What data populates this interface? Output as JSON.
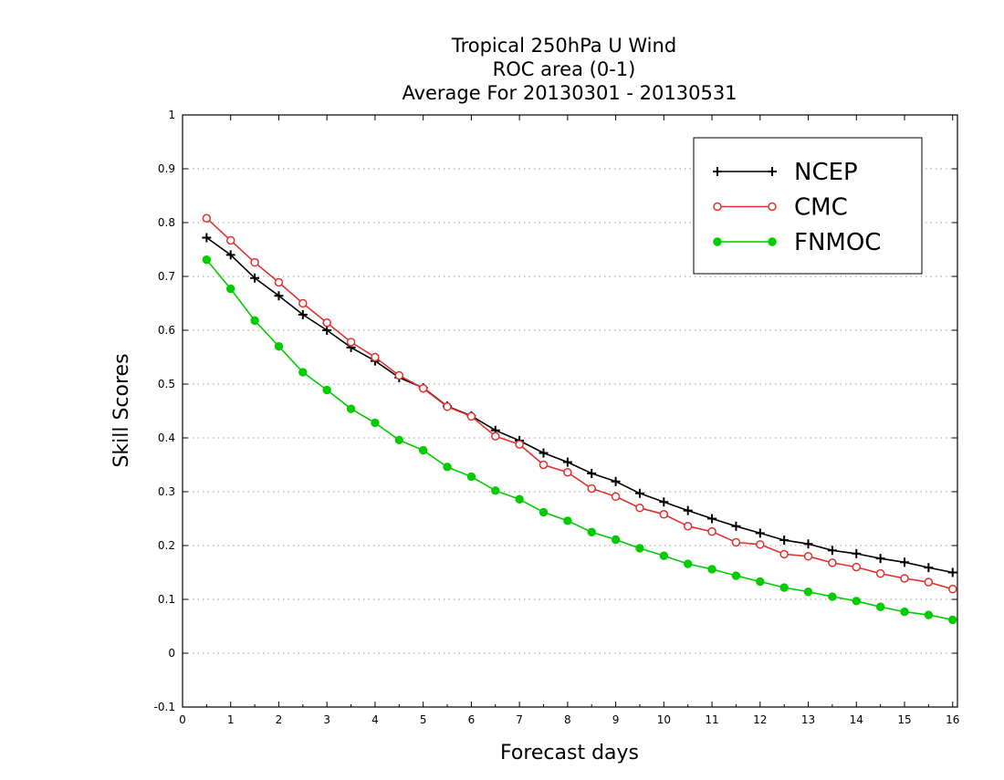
{
  "chart_data": {
    "type": "line",
    "title_lines": [
      "Tropical 250hPa U Wind",
      "ROC area (0-1)",
      "Average For 20130301 - 20130531"
    ],
    "xlabel": "Forecast days",
    "ylabel": "Skill Scores",
    "xlim": [
      0,
      16.1
    ],
    "ylim": [
      -0.1,
      1
    ],
    "x_ticks": [
      "0",
      "1",
      "2",
      "3",
      "4",
      "5",
      "6",
      "7",
      "8",
      "9",
      "10",
      "11",
      "12",
      "13",
      "14",
      "15",
      "16"
    ],
    "y_ticks": [
      "-0.1",
      "0",
      "0.1",
      "0.2",
      "0.3",
      "0.4",
      "0.5",
      "0.6",
      "0.7",
      "0.8",
      "0.9",
      "1"
    ],
    "grid": true,
    "legend_position": "top-right",
    "x": [
      0.5,
      1,
      1.5,
      2,
      2.5,
      3,
      3.5,
      4,
      4.5,
      5,
      5.5,
      6,
      6.5,
      7,
      7.5,
      8,
      8.5,
      9,
      9.5,
      10,
      10.5,
      11,
      11.5,
      12,
      12.5,
      13,
      13.5,
      14,
      14.5,
      15,
      15.5,
      16
    ],
    "series": [
      {
        "name": "NCEP",
        "color": "#000000",
        "marker": "plus",
        "values": [
          0.772,
          0.74,
          0.697,
          0.664,
          0.629,
          0.6,
          0.568,
          0.543,
          0.512,
          0.493,
          0.459,
          0.441,
          0.414,
          0.395,
          0.372,
          0.355,
          0.334,
          0.319,
          0.297,
          0.281,
          0.265,
          0.25,
          0.236,
          0.223,
          0.21,
          0.203,
          0.191,
          0.185,
          0.176,
          0.169,
          0.159,
          0.15
        ]
      },
      {
        "name": "CMC",
        "color": "#e03030",
        "marker": "open-circle",
        "values": [
          0.808,
          0.767,
          0.726,
          0.689,
          0.65,
          0.614,
          0.578,
          0.55,
          0.516,
          0.492,
          0.458,
          0.44,
          0.403,
          0.388,
          0.35,
          0.336,
          0.306,
          0.291,
          0.27,
          0.258,
          0.236,
          0.226,
          0.206,
          0.202,
          0.184,
          0.18,
          0.168,
          0.16,
          0.148,
          0.139,
          0.132,
          0.119
        ]
      },
      {
        "name": "FNMOC",
        "color": "#00cc00",
        "marker": "filled-circle",
        "values": [
          0.731,
          0.677,
          0.618,
          0.57,
          0.522,
          0.489,
          0.454,
          0.428,
          0.396,
          0.377,
          0.346,
          0.328,
          0.302,
          0.286,
          0.262,
          0.246,
          0.225,
          0.211,
          0.195,
          0.181,
          0.166,
          0.156,
          0.144,
          0.133,
          0.122,
          0.114,
          0.105,
          0.097,
          0.086,
          0.077,
          0.071,
          0.062
        ]
      }
    ]
  }
}
